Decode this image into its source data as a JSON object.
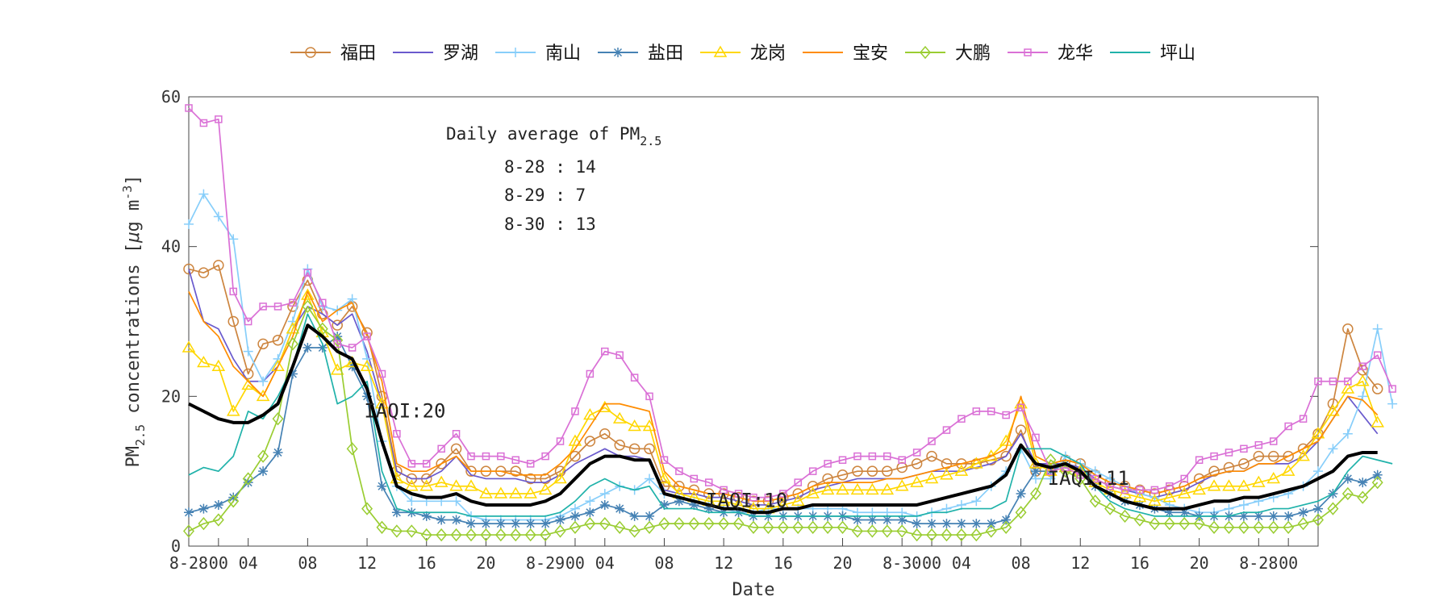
{
  "chart_data": {
    "type": "line",
    "xlabel": "Date",
    "ylabel_main": "PM",
    "ylabel_sub": "2.5",
    "ylabel_rest": " concentrations [",
    "ylabel_mu": "μ",
    "ylabel_unit": "g m",
    "ylabel_sup": "-3",
    "ylabel_close": "]",
    "ylim": [
      0,
      60
    ],
    "yticks": [
      0,
      20,
      40,
      60
    ],
    "xlim": [
      0,
      76
    ],
    "xticks": [
      {
        "x": 0,
        "label": "8-28"
      },
      {
        "x": 2,
        "label": "00"
      },
      {
        "x": 4,
        "label": "04"
      },
      {
        "x": 8,
        "label": "08"
      },
      {
        "x": 12,
        "label": "12"
      },
      {
        "x": 16,
        "label": "16"
      },
      {
        "x": 20,
        "label": "20"
      },
      {
        "x": 24,
        "label": "8-29"
      },
      {
        "x": 26,
        "label": "00"
      },
      {
        "x": 28,
        "label": "04"
      },
      {
        "x": 32,
        "label": "08"
      },
      {
        "x": 36,
        "label": "12"
      },
      {
        "x": 40,
        "label": "16"
      },
      {
        "x": 44,
        "label": "20"
      },
      {
        "x": 48,
        "label": "8-30"
      },
      {
        "x": 50,
        "label": "00"
      },
      {
        "x": 52,
        "label": "04"
      },
      {
        "x": 56,
        "label": "08"
      },
      {
        "x": 60,
        "label": "12"
      },
      {
        "x": 64,
        "label": "16"
      },
      {
        "x": 68,
        "label": "20"
      },
      {
        "x": 72,
        "label": "8-28"
      },
      {
        "x": 74,
        "label": "00"
      }
    ],
    "annotation": {
      "title_main": "Daily average of PM",
      "title_sub": "2.5",
      "lines": [
        "8-28 : 14",
        "8-29 : 7",
        "8-30 : 13"
      ]
    },
    "iaqi_labels": [
      {
        "x": 11.8,
        "y": 17.2,
        "text": "IAQI:20"
      },
      {
        "x": 34.8,
        "y": 5.2,
        "text": "IAQI:10"
      },
      {
        "x": 57.8,
        "y": 8.2,
        "text": "IAQI:11"
      }
    ],
    "legend_position": "top",
    "series": [
      {
        "name": "福田",
        "color": "#cd853f",
        "marker": "circle",
        "values": [
          37,
          36.5,
          37.5,
          30,
          23,
          27,
          27.5,
          32,
          35.5,
          31,
          29.5,
          32,
          28.5,
          20,
          10,
          9,
          9,
          11,
          13,
          10,
          10,
          10,
          10,
          9,
          9,
          10,
          12,
          14,
          15,
          13.5,
          13,
          13,
          8,
          8,
          7.5,
          7,
          7,
          6.5,
          6,
          6,
          6.5,
          7,
          8,
          9,
          9.5,
          10,
          10,
          10,
          10.5,
          11,
          12,
          11,
          11,
          11,
          11.5,
          12,
          15.5,
          10,
          10,
          11.5,
          11,
          9.5,
          8.5,
          8,
          7.5,
          7,
          7.5,
          8,
          9,
          10,
          10.5,
          11,
          12,
          12,
          12,
          13,
          15,
          19,
          29,
          23.5,
          21
        ]
      },
      {
        "name": "罗湖",
        "color": "#6a5acd",
        "marker": "none",
        "values": [
          37,
          30,
          29,
          25,
          22,
          22,
          24,
          29,
          32,
          31,
          29.5,
          31,
          26,
          19,
          10,
          9,
          9,
          10,
          12,
          9.5,
          9,
          9,
          9,
          8.5,
          8.5,
          9.5,
          11,
          12,
          13,
          12,
          12,
          11.5,
          7.5,
          7,
          7,
          6.5,
          6.5,
          6,
          5.5,
          5.5,
          6,
          6.5,
          7.5,
          8,
          8.5,
          9,
          9,
          9,
          9,
          9.5,
          10,
          10,
          10,
          10.5,
          11,
          12,
          15,
          11,
          11,
          11,
          10.5,
          9,
          8,
          7.5,
          7,
          6.5,
          7,
          7.5,
          8.5,
          9.5,
          10,
          10,
          11,
          11,
          11,
          12,
          14,
          17,
          20,
          17.5,
          15
        ]
      },
      {
        "name": "南山",
        "color": "#87cefa",
        "marker": "plus",
        "values": [
          43,
          47,
          44,
          41,
          26,
          22,
          25,
          30,
          37,
          32,
          31.5,
          33,
          25,
          14,
          8,
          6,
          6,
          6,
          6,
          4,
          3.5,
          3.5,
          3.5,
          3.5,
          3.5,
          4,
          5,
          6,
          7,
          8,
          7.5,
          9,
          7,
          6.5,
          6,
          5.5,
          5,
          4.5,
          4.5,
          5,
          5,
          5,
          5,
          5,
          5,
          4.5,
          4.5,
          4.5,
          4.5,
          4,
          4.5,
          5,
          5.5,
          6,
          8,
          10,
          13,
          9,
          9,
          12,
          11,
          10,
          9,
          8,
          7,
          6.5,
          5.5,
          5,
          4.5,
          4.5,
          5,
          5.5,
          6,
          6.5,
          7,
          8,
          10,
          13,
          15,
          20,
          29,
          19
        ]
      },
      {
        "name": "盐田",
        "color": "#4682b4",
        "marker": "asterisk",
        "values": [
          4.5,
          5,
          5.5,
          6.5,
          8.5,
          10,
          12.5,
          23,
          26.5,
          26.5,
          28,
          24,
          20,
          8,
          4.5,
          4.5,
          4,
          3.5,
          3.5,
          3,
          3,
          3,
          3,
          3,
          3,
          3.5,
          4,
          4.5,
          5.5,
          5,
          4,
          4,
          5.5,
          6,
          5.5,
          5,
          4.5,
          4.5,
          4,
          4,
          4,
          4,
          4,
          4,
          4,
          3.5,
          3.5,
          3.5,
          3.5,
          3,
          3,
          3,
          3,
          3,
          3,
          3.5,
          7,
          10,
          10,
          11,
          10,
          8,
          7,
          6,
          5.5,
          5,
          4.5,
          4.5,
          4,
          4,
          4,
          4,
          4,
          4,
          4,
          4.5,
          5,
          7,
          9,
          8.5,
          9.5
        ]
      },
      {
        "name": "龙岗",
        "color": "#ffd700",
        "marker": "triangle",
        "values": [
          26.5,
          24.5,
          24,
          18,
          21.5,
          20,
          24,
          29,
          33.5,
          28.5,
          23.5,
          24.5,
          24,
          19,
          9,
          8,
          8,
          8.5,
          8,
          8,
          7,
          7,
          7,
          7,
          7.5,
          9,
          14,
          17.5,
          18.5,
          17,
          16,
          16,
          9,
          7,
          6.5,
          6,
          6,
          5.5,
          5,
          5,
          5.5,
          6,
          7,
          7.5,
          7.5,
          7.5,
          7.5,
          7.5,
          8,
          8.5,
          9,
          9.5,
          10,
          11,
          12,
          14,
          19,
          11,
          10,
          10.5,
          10,
          8.5,
          7.5,
          7,
          6.5,
          6,
          6.5,
          7,
          7.5,
          8,
          8,
          8,
          8.5,
          9,
          10,
          12,
          15,
          18,
          21,
          22,
          16.5
        ]
      },
      {
        "name": "宝安",
        "color": "#ff8c00",
        "marker": "none",
        "values": [
          34,
          30,
          28,
          24,
          22,
          20,
          24,
          28,
          34,
          30,
          31.5,
          32.5,
          28,
          22,
          11,
          10,
          10,
          11,
          12,
          10,
          10,
          10,
          9.5,
          9.5,
          9.5,
          11,
          13,
          16,
          19,
          19,
          18.5,
          18,
          10,
          8,
          7.5,
          7,
          7,
          6.5,
          6,
          6,
          6.5,
          7,
          8,
          8.5,
          8.5,
          8.5,
          8.5,
          9,
          9,
          9.5,
          10,
          10.5,
          11,
          11.5,
          12,
          13,
          20,
          12,
          11,
          11.5,
          11,
          9.5,
          8.5,
          8,
          7.5,
          7,
          7.5,
          8,
          9,
          9.5,
          10,
          10,
          11,
          11,
          12,
          13,
          14,
          17,
          20,
          19.5,
          17.5
        ]
      },
      {
        "name": "大鹏",
        "color": "#9acd32",
        "marker": "diamond",
        "values": [
          2,
          3,
          3.5,
          6,
          9,
          12,
          17,
          27,
          32,
          29,
          27.5,
          13,
          5,
          2.5,
          2,
          2,
          1.5,
          1.5,
          1.5,
          1.5,
          1.5,
          1.5,
          1.5,
          1.5,
          1.5,
          2,
          2.5,
          3,
          3,
          2.5,
          2,
          2.5,
          3,
          3,
          3,
          3,
          3,
          3,
          2.5,
          2.5,
          2.5,
          2.5,
          2.5,
          2.5,
          2.5,
          2,
          2,
          2,
          2,
          1.5,
          1.5,
          1.5,
          1.5,
          1.5,
          2,
          2.5,
          4.5,
          7,
          11.5,
          10,
          9,
          6,
          5,
          4,
          3.5,
          3,
          3,
          3,
          3,
          2.5,
          2.5,
          2.5,
          2.5,
          2.5,
          2.5,
          3,
          3.5,
          5,
          7,
          6.5,
          8.5
        ]
      },
      {
        "name": "龙华",
        "color": "#da70d6",
        "marker": "square",
        "values": [
          58.5,
          56.5,
          57,
          34,
          30,
          32,
          32,
          32.5,
          36.5,
          32.5,
          27,
          26.5,
          28,
          23,
          15,
          11,
          11,
          13,
          15,
          12,
          12,
          12,
          11.5,
          11,
          12,
          14,
          18,
          23,
          26,
          25.5,
          22.5,
          20,
          11.5,
          10,
          9,
          8.5,
          7.5,
          7,
          6.5,
          6.5,
          7,
          8.5,
          10,
          11,
          11.5,
          12,
          12,
          12,
          11.5,
          12.5,
          14,
          15.5,
          17,
          18,
          18,
          17.5,
          18.5,
          14.5,
          10,
          10.5,
          9.5,
          9,
          8,
          7.5,
          7.5,
          7.5,
          8,
          9,
          11.5,
          12,
          12.5,
          13,
          13.5,
          14,
          16,
          17,
          22,
          22,
          22,
          24,
          25.5,
          21
        ]
      },
      {
        "name": "坪山",
        "color": "#20b2aa",
        "marker": "none",
        "values": [
          9.5,
          10.5,
          10,
          12,
          18,
          17,
          20,
          24,
          31,
          27,
          19,
          20,
          22,
          10,
          5,
          4.5,
          4.5,
          4.5,
          4.5,
          4,
          4,
          4,
          4,
          4,
          4,
          4.5,
          6,
          8,
          9,
          8,
          7.5,
          8,
          5,
          5,
          5,
          4.5,
          4.5,
          4.5,
          4,
          4,
          4,
          4,
          4,
          4,
          4,
          4,
          4,
          4,
          4,
          4,
          4.5,
          4.5,
          5,
          5,
          5,
          6,
          13,
          13,
          13,
          12,
          11,
          8,
          6,
          5,
          4.5,
          4,
          4,
          4,
          4,
          4,
          4,
          4.5,
          4.5,
          5,
          5,
          5.5,
          6,
          7,
          10,
          12,
          11.5,
          11
        ]
      },
      {
        "name": "",
        "color": "#000000",
        "marker": "none",
        "bold": true,
        "values": [
          19,
          18,
          17,
          16.5,
          16.5,
          17.5,
          19,
          24,
          29.5,
          28,
          26,
          25,
          21,
          14,
          8,
          7,
          6.5,
          6.5,
          7,
          6,
          5.5,
          5.5,
          5.5,
          5.5,
          6,
          7,
          9,
          11,
          12,
          12,
          11.5,
          11.5,
          7,
          6.5,
          6,
          5.5,
          5,
          5,
          4.5,
          4.5,
          5,
          5,
          5.5,
          5.5,
          5.5,
          5.5,
          5.5,
          5.5,
          5.5,
          5.5,
          6,
          6.5,
          7,
          7.5,
          8,
          9.5,
          13.5,
          11,
          10.5,
          11,
          10,
          8,
          7,
          6,
          5.5,
          5,
          5,
          5,
          5.5,
          6,
          6,
          6.5,
          6.5,
          7,
          7.5,
          8,
          9,
          10,
          12,
          12.5,
          12.5
        ]
      }
    ]
  }
}
